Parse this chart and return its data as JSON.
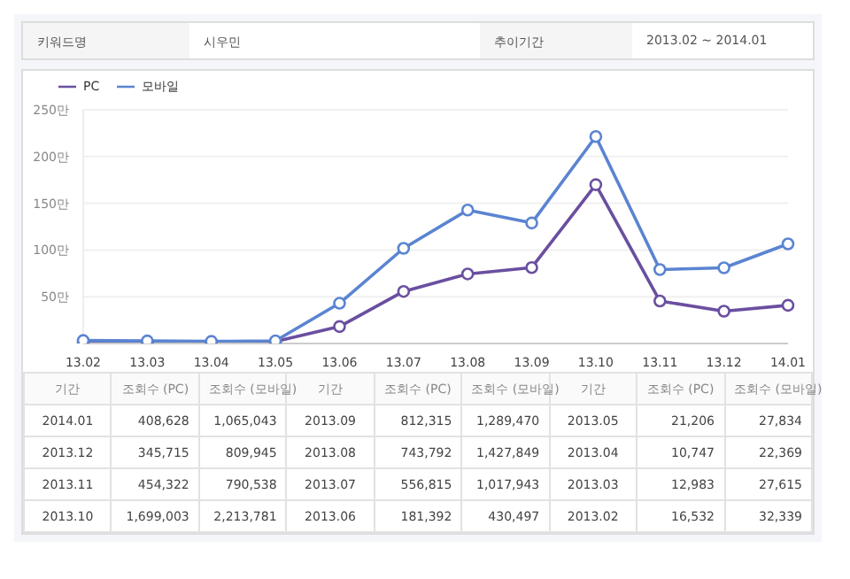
{
  "chart_data": {
    "type": "line",
    "categories": [
      "13.02",
      "13.03",
      "13.04",
      "13.05",
      "13.06",
      "13.07",
      "13.08",
      "13.09",
      "13.10",
      "13.11",
      "13.12",
      "14.01"
    ],
    "series": [
      {
        "name": "PC",
        "color": "#6a4fa0",
        "values": [
          1.6532,
          1.2983,
          1.0747,
          2.1206,
          18.1392,
          55.6815,
          74.3792,
          81.2315,
          169.9003,
          45.4322,
          34.5715,
          40.8628
        ]
      },
      {
        "name": "모바일",
        "color": "#5b84d1",
        "values": [
          3.2339,
          2.7615,
          2.2369,
          2.7834,
          43.0497,
          101.7943,
          142.7849,
          128.947,
          221.3781,
          79.0538,
          80.9945,
          106.5043
        ]
      }
    ],
    "ylim": [
      0,
      250
    ],
    "yticks": [
      {
        "value": 50,
        "label": "50만"
      },
      {
        "value": 100,
        "label": "100만"
      },
      {
        "value": 150,
        "label": "150만"
      },
      {
        "value": 200,
        "label": "200만"
      },
      {
        "value": 250,
        "label": "250만"
      }
    ],
    "grid": "y",
    "legend": "top left",
    "marker": "circle",
    "line_style": "solid",
    "annotations": [
      "키워드명",
      "시우민",
      "추이기간",
      "2013.02 ~ 2014.01",
      "기간",
      "조회수 (PC)",
      "조회수 (모바일)",
      "2013.02",
      "2013.03",
      "2013.04",
      "2013.05",
      "2013.06",
      "2013.07",
      "2013.08",
      "2013.09",
      "2013.10",
      "2013.11",
      "2013.12",
      "2014.01",
      "16,532",
      "12,983",
      "10,747",
      "21,206",
      "181,392",
      "556,815",
      "743,792",
      "812,315",
      "1,699,003",
      "454,322",
      "345,715",
      "408,628",
      "32,339",
      "27,615",
      "22,369",
      "27,834",
      "430,497",
      "1,017,943",
      "1,427,849",
      "1,289,470",
      "2,213,781",
      "790,538",
      "809,945",
      "1,065,043"
    ]
  }
}
